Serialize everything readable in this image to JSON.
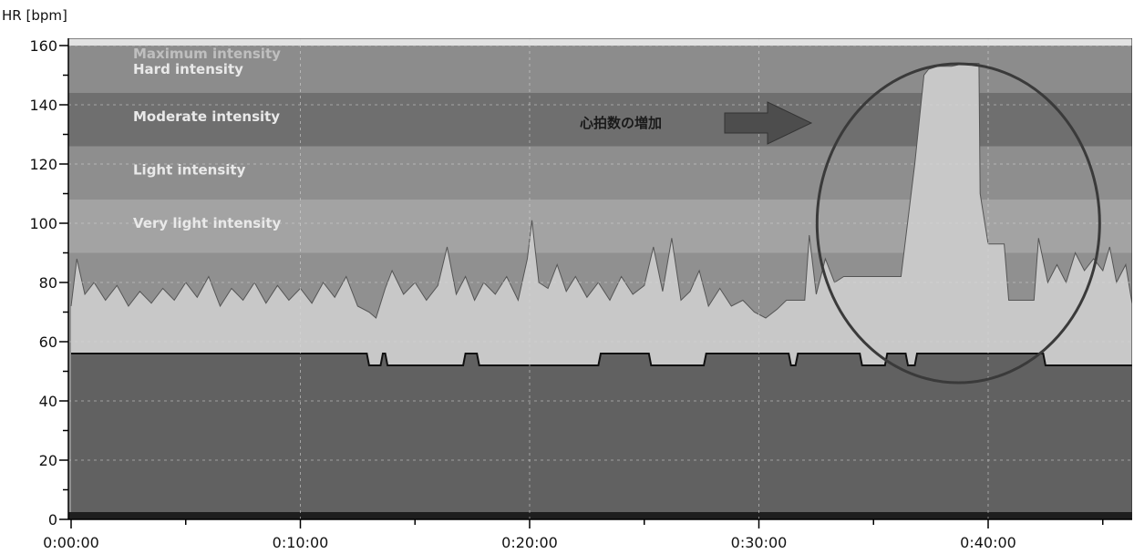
{
  "chart_data": {
    "type": "area",
    "ylabel": "HR [bpm]",
    "xlabel": "",
    "ylim": [
      0,
      160
    ],
    "xlim_minutes": [
      0,
      46.5
    ],
    "y_ticks": [
      0,
      20,
      40,
      60,
      80,
      100,
      120,
      140,
      160
    ],
    "x_ticks": [
      "0:00:00",
      "0:10:00",
      "0:20:00",
      "0:30:00",
      "0:40:00"
    ],
    "x_tick_minutes": [
      0,
      10,
      20,
      30,
      40
    ],
    "grid": true,
    "zones": [
      {
        "label": "Maximum intensity",
        "from": 160,
        "to": 165,
        "color": "#e2e2e2"
      },
      {
        "label": "Hard intensity",
        "from": 144,
        "to": 160,
        "color": "#8c8c8c"
      },
      {
        "label": "Moderate intensity",
        "from": 126,
        "to": 144,
        "color": "#6f6f6f"
      },
      {
        "label": "Light intensity",
        "from": 108,
        "to": 126,
        "color": "#8e8e8e"
      },
      {
        "label": "Very light intensity",
        "from": 90,
        "to": 108,
        "color": "#a3a3a3"
      }
    ],
    "base_color": "#909090",
    "hr_fill_color": "#c8c8c8",
    "lower_band_color": "#616161",
    "series": [
      {
        "type": "hr_area",
        "points": [
          [
            0,
            72
          ],
          [
            0.25,
            88
          ],
          [
            0.6,
            76
          ],
          [
            1.0,
            80
          ],
          [
            1.5,
            74
          ],
          [
            2.0,
            79
          ],
          [
            2.5,
            72
          ],
          [
            3.0,
            77
          ],
          [
            3.5,
            73
          ],
          [
            4.0,
            78
          ],
          [
            4.5,
            74
          ],
          [
            5.0,
            80
          ],
          [
            5.5,
            75
          ],
          [
            6.0,
            82
          ],
          [
            6.5,
            72
          ],
          [
            7.0,
            78
          ],
          [
            7.5,
            74
          ],
          [
            8.0,
            80
          ],
          [
            8.5,
            73
          ],
          [
            9.0,
            79
          ],
          [
            9.5,
            74
          ],
          [
            10.0,
            78
          ],
          [
            10.5,
            73
          ],
          [
            11.0,
            80
          ],
          [
            11.5,
            75
          ],
          [
            12.0,
            82
          ],
          [
            12.5,
            72
          ],
          [
            13.0,
            70
          ],
          [
            13.3,
            68
          ],
          [
            13.7,
            78
          ],
          [
            14.0,
            84
          ],
          [
            14.5,
            76
          ],
          [
            15.0,
            80
          ],
          [
            15.5,
            74
          ],
          [
            16.0,
            79
          ],
          [
            16.4,
            92
          ],
          [
            16.8,
            76
          ],
          [
            17.2,
            82
          ],
          [
            17.6,
            74
          ],
          [
            18.0,
            80
          ],
          [
            18.5,
            76
          ],
          [
            19.0,
            82
          ],
          [
            19.5,
            74
          ],
          [
            19.9,
            88
          ],
          [
            20.1,
            101
          ],
          [
            20.4,
            80
          ],
          [
            20.8,
            78
          ],
          [
            21.2,
            86
          ],
          [
            21.6,
            77
          ],
          [
            22.0,
            82
          ],
          [
            22.5,
            75
          ],
          [
            23.0,
            80
          ],
          [
            23.5,
            74
          ],
          [
            24.0,
            82
          ],
          [
            24.5,
            76
          ],
          [
            25.0,
            79
          ],
          [
            25.4,
            92
          ],
          [
            25.8,
            77
          ],
          [
            26.2,
            95
          ],
          [
            26.6,
            74
          ],
          [
            27.0,
            77
          ],
          [
            27.4,
            84
          ],
          [
            27.8,
            72
          ],
          [
            28.3,
            78
          ],
          [
            28.8,
            72
          ],
          [
            29.3,
            74
          ],
          [
            29.8,
            70
          ],
          [
            30.3,
            68
          ],
          [
            30.8,
            71
          ],
          [
            31.2,
            74
          ],
          [
            31.6,
            74
          ],
          [
            32.0,
            74
          ],
          [
            32.2,
            96
          ],
          [
            32.5,
            76
          ],
          [
            32.9,
            88
          ],
          [
            33.3,
            80
          ],
          [
            33.7,
            82
          ],
          [
            34.5,
            82
          ],
          [
            35.3,
            82
          ],
          [
            36.2,
            82
          ],
          [
            36.8,
            120
          ],
          [
            37.2,
            150
          ],
          [
            37.4,
            152
          ],
          [
            37.8,
            153
          ],
          [
            38.4,
            153
          ],
          [
            39.0,
            154
          ],
          [
            39.6,
            154
          ],
          [
            39.65,
            110
          ],
          [
            40.0,
            93
          ],
          [
            40.7,
            93
          ],
          [
            40.9,
            74
          ],
          [
            41.5,
            74
          ],
          [
            42.0,
            74
          ],
          [
            42.2,
            95
          ],
          [
            42.6,
            80
          ],
          [
            43.0,
            86
          ],
          [
            43.4,
            80
          ],
          [
            43.8,
            90
          ],
          [
            44.2,
            84
          ],
          [
            44.6,
            88
          ],
          [
            45.0,
            84
          ],
          [
            45.3,
            92
          ],
          [
            45.6,
            80
          ],
          [
            46.0,
            86
          ],
          [
            46.3,
            72
          ],
          [
            46.5,
            76
          ]
        ]
      },
      {
        "type": "step_line",
        "points": [
          [
            0,
            56
          ],
          [
            12.9,
            56
          ],
          [
            13.0,
            52
          ],
          [
            13.5,
            52
          ],
          [
            13.6,
            56
          ],
          [
            13.7,
            56
          ],
          [
            13.8,
            52
          ],
          [
            17.1,
            52
          ],
          [
            17.2,
            56
          ],
          [
            17.7,
            56
          ],
          [
            17.8,
            52
          ],
          [
            23.0,
            52
          ],
          [
            23.1,
            56
          ],
          [
            25.2,
            56
          ],
          [
            25.3,
            52
          ],
          [
            27.6,
            52
          ],
          [
            27.7,
            56
          ],
          [
            31.3,
            56
          ],
          [
            31.4,
            52
          ],
          [
            31.6,
            52
          ],
          [
            31.7,
            56
          ],
          [
            34.4,
            56
          ],
          [
            34.5,
            52
          ],
          [
            35.5,
            52
          ],
          [
            35.6,
            56
          ],
          [
            36.4,
            56
          ],
          [
            36.5,
            52
          ],
          [
            36.8,
            52
          ],
          [
            36.9,
            56
          ],
          [
            42.4,
            56
          ],
          [
            42.5,
            52
          ],
          [
            46.5,
            52
          ]
        ]
      }
    ],
    "annotation": {
      "text": "心拍数の増加",
      "arrow_color": "#4d4d4d"
    },
    "highlight_ellipse": {
      "center_minutes": 38.7,
      "center_value": 100,
      "stroke_color": "#3a3a3a"
    }
  }
}
